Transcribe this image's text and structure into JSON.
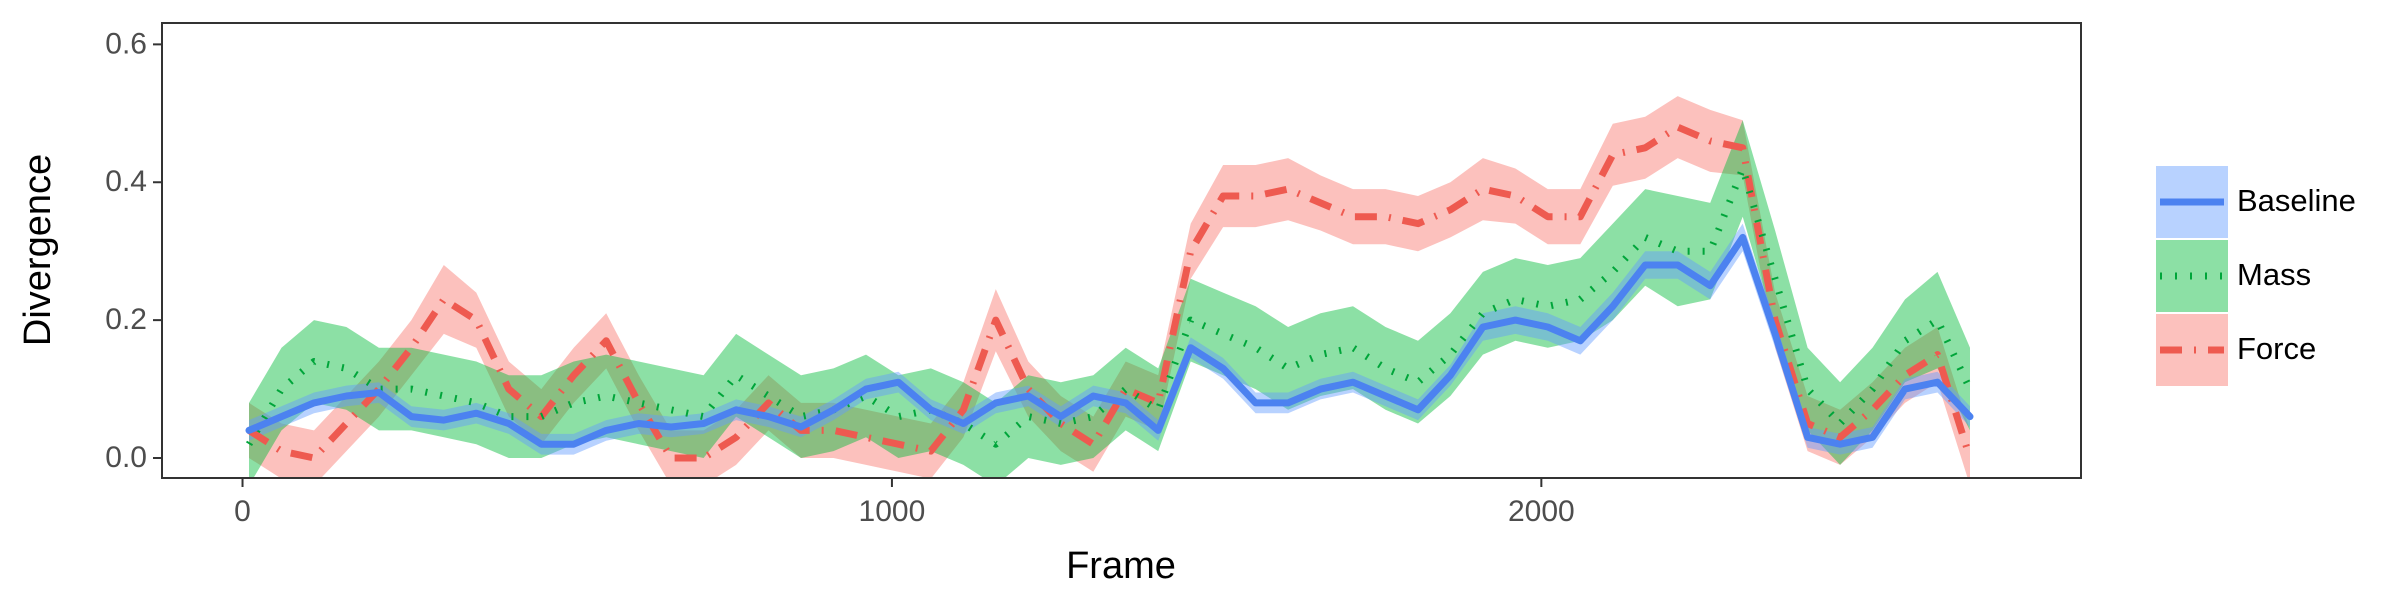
{
  "chart_data": {
    "type": "line",
    "x_label": "Frame",
    "y_label": "Divergence",
    "legend": "right",
    "grid": false,
    "x": [
      10,
      60,
      110,
      160,
      210,
      260,
      310,
      360,
      410,
      460,
      510,
      560,
      610,
      660,
      710,
      760,
      810,
      860,
      910,
      960,
      1010,
      1060,
      1110,
      1160,
      1210,
      1260,
      1310,
      1360,
      1410,
      1460,
      1510,
      1560,
      1610,
      1660,
      1710,
      1760,
      1810,
      1860,
      1910,
      1960,
      2010,
      2060,
      2110,
      2160,
      2210,
      2260,
      2310,
      2360,
      2410,
      2460,
      2510,
      2560,
      2610,
      2660
    ],
    "xlim": [
      -124,
      2831
    ],
    "xticks": [
      0,
      1000,
      2000
    ],
    "ylim": [
      -0.029,
      0.631
    ],
    "yticks": [
      {
        "value": 0,
        "label": "0.0"
      },
      0.2,
      0.4,
      0.6
    ],
    "series": [
      {
        "name": "Baseline",
        "color": "#619CFF",
        "line_color": "#4C82F0",
        "dash": "solid",
        "values": [
          0.04,
          0.06,
          0.08,
          0.09,
          0.095,
          0.06,
          0.055,
          0.065,
          0.05,
          0.02,
          0.02,
          0.04,
          0.05,
          0.045,
          0.05,
          0.07,
          0.06,
          0.045,
          0.07,
          0.1,
          0.11,
          0.07,
          0.05,
          0.08,
          0.09,
          0.06,
          0.09,
          0.08,
          0.04,
          0.16,
          0.13,
          0.08,
          0.08,
          0.1,
          0.11,
          0.09,
          0.07,
          0.12,
          0.19,
          0.2,
          0.19,
          0.17,
          0.22,
          0.28,
          0.28,
          0.25,
          0.32,
          0.18,
          0.03,
          0.02,
          0.03,
          0.1,
          0.11,
          0.06
        ],
        "errors": [
          0.015,
          0.015,
          0.015,
          0.015,
          0.015,
          0.015,
          0.015,
          0.015,
          0.015,
          0.015,
          0.015,
          0.015,
          0.015,
          0.015,
          0.015,
          0.015,
          0.015,
          0.015,
          0.015,
          0.015,
          0.015,
          0.015,
          0.015,
          0.015,
          0.015,
          0.015,
          0.015,
          0.015,
          0.015,
          0.015,
          0.015,
          0.015,
          0.015,
          0.015,
          0.015,
          0.015,
          0.015,
          0.015,
          0.02,
          0.02,
          0.02,
          0.02,
          0.02,
          0.02,
          0.02,
          0.02,
          0.02,
          0.02,
          0.015,
          0.015,
          0.015,
          0.015,
          0.015,
          0.015
        ]
      },
      {
        "name": "Mass",
        "color": "#00BA38",
        "line_color": "#00A53A",
        "dash": "dotted",
        "values": [
          0.02,
          0.1,
          0.14,
          0.13,
          0.1,
          0.1,
          0.09,
          0.08,
          0.06,
          0.06,
          0.08,
          0.09,
          0.08,
          0.07,
          0.06,
          0.12,
          0.09,
          0.06,
          0.07,
          0.09,
          0.06,
          0.07,
          0.05,
          0.02,
          0.06,
          0.05,
          0.06,
          0.1,
          0.07,
          0.2,
          0.18,
          0.16,
          0.13,
          0.15,
          0.16,
          0.13,
          0.11,
          0.15,
          0.21,
          0.23,
          0.22,
          0.23,
          0.27,
          0.32,
          0.3,
          0.3,
          0.42,
          0.26,
          0.1,
          0.05,
          0.1,
          0.17,
          0.2,
          0.1
        ],
        "errors": [
          0.06,
          0.06,
          0.06,
          0.06,
          0.06,
          0.06,
          0.06,
          0.06,
          0.06,
          0.06,
          0.06,
          0.06,
          0.06,
          0.06,
          0.06,
          0.06,
          0.06,
          0.06,
          0.06,
          0.06,
          0.06,
          0.06,
          0.06,
          0.06,
          0.06,
          0.06,
          0.06,
          0.06,
          0.06,
          0.06,
          0.06,
          0.06,
          0.06,
          0.06,
          0.06,
          0.06,
          0.06,
          0.06,
          0.06,
          0.06,
          0.06,
          0.06,
          0.07,
          0.07,
          0.08,
          0.07,
          0.07,
          0.07,
          0.06,
          0.06,
          0.06,
          0.06,
          0.07,
          0.06
        ]
      },
      {
        "name": "Force",
        "color": "#F8766D",
        "line_color": "#EE5A50",
        "dash": "dashdot",
        "values": [
          0.04,
          0.01,
          0.0,
          0.05,
          0.1,
          0.16,
          0.23,
          0.2,
          0.1,
          0.06,
          0.12,
          0.17,
          0.08,
          0.0,
          0.0,
          0.03,
          0.08,
          0.04,
          0.04,
          0.03,
          0.02,
          0.01,
          0.07,
          0.2,
          0.1,
          0.05,
          0.02,
          0.1,
          0.08,
          0.3,
          0.38,
          0.38,
          0.39,
          0.37,
          0.35,
          0.35,
          0.34,
          0.36,
          0.39,
          0.38,
          0.35,
          0.35,
          0.44,
          0.45,
          0.48,
          0.46,
          0.45,
          0.2,
          0.05,
          0.03,
          0.07,
          0.12,
          0.15,
          0.0
        ],
        "errors": [
          0.04,
          0.04,
          0.04,
          0.04,
          0.04,
          0.04,
          0.05,
          0.04,
          0.04,
          0.04,
          0.04,
          0.04,
          0.04,
          0.04,
          0.04,
          0.04,
          0.04,
          0.04,
          0.04,
          0.04,
          0.04,
          0.04,
          0.04,
          0.045,
          0.04,
          0.04,
          0.04,
          0.04,
          0.04,
          0.04,
          0.045,
          0.045,
          0.045,
          0.04,
          0.04,
          0.04,
          0.04,
          0.04,
          0.045,
          0.04,
          0.04,
          0.04,
          0.045,
          0.045,
          0.045,
          0.045,
          0.04,
          0.04,
          0.04,
          0.04,
          0.04,
          0.04,
          0.04,
          0.04
        ]
      }
    ]
  }
}
